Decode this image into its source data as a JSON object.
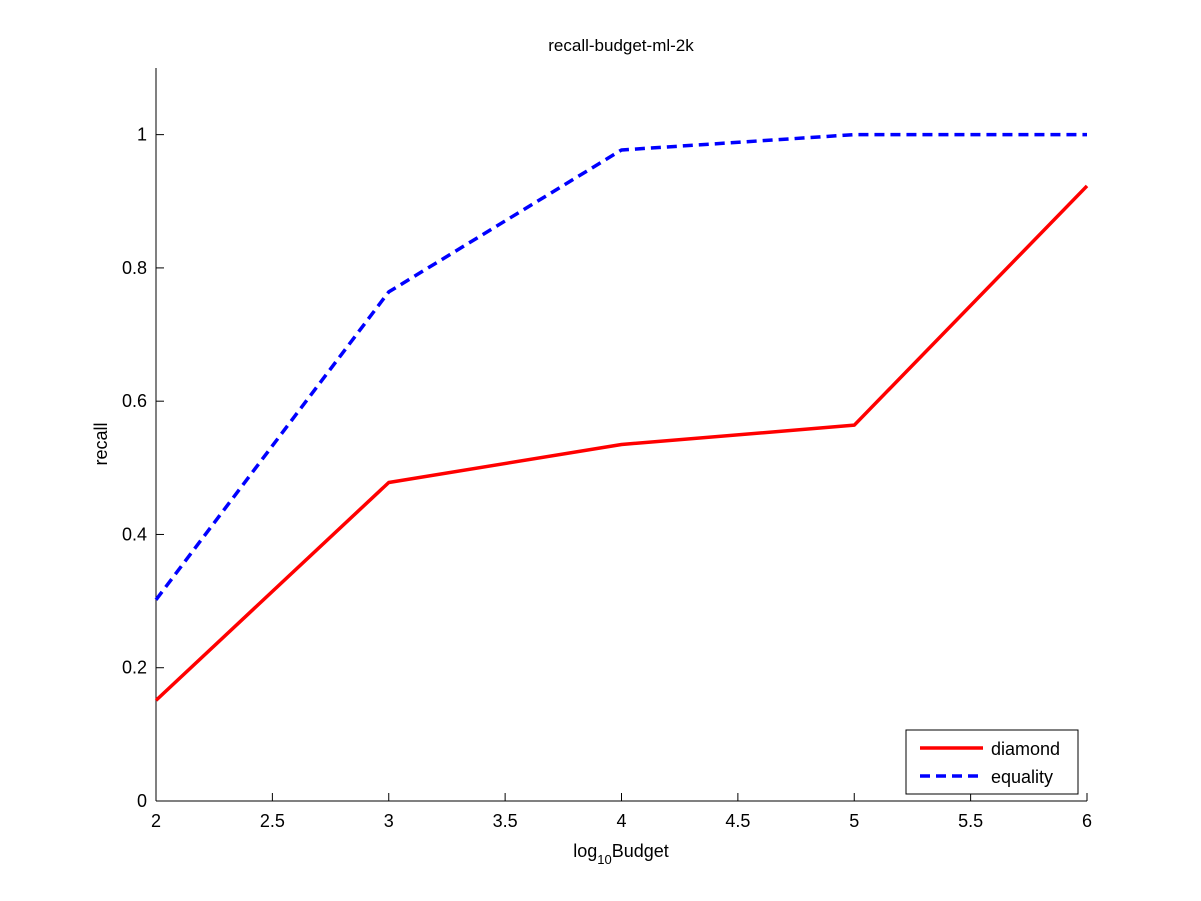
{
  "chart_data": {
    "type": "line",
    "title": "recall-budget-ml-2k",
    "xlabel": {
      "base": "log",
      "sub": "10",
      "rest": "Budget"
    },
    "ylabel": "recall",
    "xlim": [
      2,
      6
    ],
    "ylim": [
      0,
      1.1
    ],
    "xticks": [
      {
        "value": 2,
        "label": "2"
      },
      {
        "value": 2.5,
        "label": "2.5"
      },
      {
        "value": 3,
        "label": "3"
      },
      {
        "value": 3.5,
        "label": "3.5"
      },
      {
        "value": 4,
        "label": "4"
      },
      {
        "value": 4.5,
        "label": "4.5"
      },
      {
        "value": 5,
        "label": "5"
      },
      {
        "value": 5.5,
        "label": "5.5"
      },
      {
        "value": 6,
        "label": "6"
      }
    ],
    "yticks": [
      {
        "value": 0,
        "label": "0"
      },
      {
        "value": 0.2,
        "label": "0.2"
      },
      {
        "value": 0.4,
        "label": "0.4"
      },
      {
        "value": 0.6,
        "label": "0.6"
      },
      {
        "value": 0.8,
        "label": "0.8"
      },
      {
        "value": 1,
        "label": "1"
      }
    ],
    "x": [
      2,
      3,
      4,
      5,
      6
    ],
    "series": [
      {
        "name": "diamond",
        "values": [
          0.151,
          0.478,
          0.535,
          0.564,
          0.923
        ],
        "color": "#ff0000",
        "style": "solid"
      },
      {
        "name": "equality",
        "values": [
          0.302,
          0.764,
          0.977,
          1.0,
          1.0
        ],
        "color": "#0000ff",
        "style": "dashed"
      }
    ],
    "legend": "bottom-right",
    "grid": false
  }
}
